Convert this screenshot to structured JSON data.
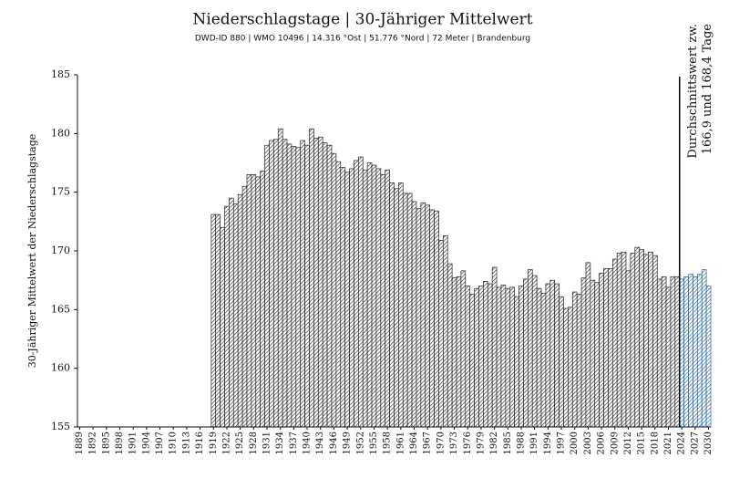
{
  "chart_data": {
    "type": "bar",
    "title": "Niederschlagstage | 30-Jähriger Mittelwert",
    "subtitle": "DWD-ID 880 | WMO 10496 | 14.316 °Ost | 51.776 °Nord | 72 Meter | Brandenburg",
    "y_label": "30-Jähriger Mittelwert der Niederschlagstage",
    "categories": [
      "1889",
      null,
      null,
      "1892",
      null,
      null,
      "1895",
      null,
      null,
      "1898",
      null,
      null,
      "1901",
      null,
      null,
      "1904",
      null,
      null,
      "1907",
      null,
      null,
      "1910",
      null,
      null,
      "1913",
      null,
      null,
      "1916",
      null,
      null,
      "1919",
      null,
      null,
      "1922",
      null,
      null,
      "1925",
      null,
      null,
      "1928",
      null,
      null,
      "1931",
      null,
      null,
      "1934",
      null,
      null,
      "1937",
      null,
      null,
      "1940",
      null,
      null,
      "1943",
      null,
      null,
      "1946",
      null,
      null,
      "1949",
      null,
      null,
      "1952",
      null,
      null,
      "1955",
      null,
      null,
      "1958",
      null,
      null,
      "1961",
      null,
      null,
      "1964",
      null,
      null,
      "1967",
      null,
      null,
      "1970",
      null,
      null,
      "1973",
      null,
      null,
      "1976",
      null,
      null,
      "1979",
      null,
      null,
      "1982",
      null,
      null,
      "1985",
      null,
      null,
      "1988",
      null,
      null,
      "1991",
      null,
      null,
      "1994",
      null,
      null,
      "1997",
      null,
      null,
      "2000",
      null,
      null,
      "2003",
      null,
      null,
      "2006",
      null,
      null,
      "2009",
      null,
      null,
      "2012",
      null,
      null,
      "2015",
      null,
      null,
      "2018",
      null,
      null,
      "2021",
      null,
      null,
      "2024",
      null,
      null,
      "2027",
      null,
      null,
      "2030"
    ],
    "values": [
      155,
      155,
      155,
      155,
      155,
      155,
      155,
      155,
      155,
      155,
      155,
      155,
      155,
      155,
      155,
      155,
      155,
      155,
      155,
      155,
      155,
      155,
      155,
      155,
      155,
      155,
      155,
      155,
      155,
      155,
      173.1,
      173.1,
      172.0,
      173.8,
      174.5,
      174.0,
      174.8,
      175.5,
      176.5,
      176.5,
      176.3,
      176.8,
      179.0,
      179.4,
      179.5,
      180.4,
      179.5,
      179.1,
      178.9,
      178.8,
      179.4,
      179.0,
      180.4,
      179.6,
      179.7,
      179.2,
      179.0,
      178.3,
      177.6,
      177.1,
      176.7,
      177.0,
      177.7,
      178.0,
      176.9,
      177.5,
      177.3,
      177.0,
      176.5,
      176.9,
      175.8,
      175.3,
      175.8,
      174.9,
      174.9,
      174.2,
      173.6,
      174.1,
      173.9,
      173.5,
      173.4,
      170.9,
      171.3,
      168.9,
      167.7,
      167.8,
      168.3,
      167.0,
      166.3,
      166.8,
      167.0,
      167.4,
      167.2,
      168.6,
      166.9,
      167.1,
      166.8,
      166.9,
      166.1,
      167.0,
      167.6,
      168.4,
      167.9,
      166.8,
      166.4,
      167.2,
      167.5,
      167.2,
      166.1,
      165.1,
      165.2,
      166.5,
      166.3,
      167.7,
      169.0,
      167.5,
      167.3,
      168.1,
      168.5,
      168.5,
      169.3,
      169.8,
      169.9,
      168.3,
      169.8,
      170.3,
      170.1,
      169.7,
      169.9,
      169.6,
      167.6,
      167.8,
      166.9,
      167.8,
      167.8,
      167.6,
      167.8,
      168.0,
      167.8,
      168.0,
      168.4,
      167.0
    ],
    "color": "#222222",
    "highlight_color": "#1f5f9f",
    "annotation": {
      "x": "2024",
      "lines": [
        "Durchschnittswert zw.",
        "166,9 und 168,4 Tage"
      ]
    },
    "ylim": [
      155,
      185
    ],
    "yticks": [
      155,
      160,
      165,
      170,
      175,
      180,
      185
    ],
    "grid": false
  }
}
